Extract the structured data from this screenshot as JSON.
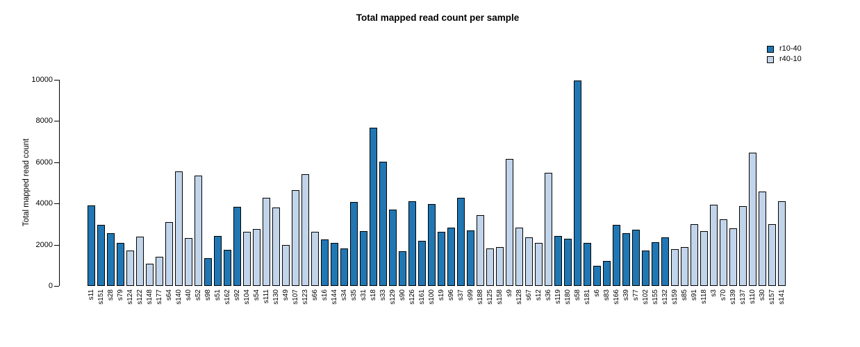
{
  "chart_data": {
    "type": "bar",
    "title": "Total mapped read count per sample",
    "xlabel": "",
    "ylabel": "Total mapped read count",
    "ylim": [
      0,
      10000
    ],
    "yticks": [
      0,
      2000,
      4000,
      6000,
      8000,
      10000
    ],
    "grid": false,
    "legend_position": "top-right",
    "bar_border_color": "#000000",
    "groups": [
      {
        "name": "r10-40",
        "color": "#2077b4"
      },
      {
        "name": "r40-10",
        "color": "#c1d4ea"
      }
    ],
    "bars": [
      {
        "label": "s11",
        "value": 3900,
        "group": "r10-40"
      },
      {
        "label": "s151",
        "value": 2960,
        "group": "r10-40"
      },
      {
        "label": "s28",
        "value": 2550,
        "group": "r10-40"
      },
      {
        "label": "s79",
        "value": 2080,
        "group": "r10-40"
      },
      {
        "label": "s124",
        "value": 1720,
        "group": "r40-10"
      },
      {
        "label": "s122",
        "value": 2380,
        "group": "r40-10"
      },
      {
        "label": "s148",
        "value": 1070,
        "group": "r40-10"
      },
      {
        "label": "s177",
        "value": 1410,
        "group": "r40-10"
      },
      {
        "label": "s64",
        "value": 3080,
        "group": "r40-10"
      },
      {
        "label": "s140",
        "value": 5560,
        "group": "r40-10"
      },
      {
        "label": "s40",
        "value": 2320,
        "group": "r40-10"
      },
      {
        "label": "s52",
        "value": 5330,
        "group": "r40-10"
      },
      {
        "label": "s98",
        "value": 1330,
        "group": "r10-40"
      },
      {
        "label": "s51",
        "value": 2410,
        "group": "r10-40"
      },
      {
        "label": "s162",
        "value": 1760,
        "group": "r10-40"
      },
      {
        "label": "s92",
        "value": 3830,
        "group": "r10-40"
      },
      {
        "label": "s104",
        "value": 2630,
        "group": "r40-10"
      },
      {
        "label": "s54",
        "value": 2770,
        "group": "r40-10"
      },
      {
        "label": "s111",
        "value": 4270,
        "group": "r40-10"
      },
      {
        "label": "s130",
        "value": 3800,
        "group": "r40-10"
      },
      {
        "label": "s49",
        "value": 2000,
        "group": "r40-10"
      },
      {
        "label": "s107",
        "value": 4650,
        "group": "r40-10"
      },
      {
        "label": "s123",
        "value": 5400,
        "group": "r40-10"
      },
      {
        "label": "s66",
        "value": 2610,
        "group": "r40-10"
      },
      {
        "label": "s16",
        "value": 2250,
        "group": "r10-40"
      },
      {
        "label": "s144",
        "value": 2090,
        "group": "r10-40"
      },
      {
        "label": "s34",
        "value": 1800,
        "group": "r10-40"
      },
      {
        "label": "s35",
        "value": 4060,
        "group": "r10-40"
      },
      {
        "label": "s31",
        "value": 2650,
        "group": "r10-40"
      },
      {
        "label": "s18",
        "value": 7650,
        "group": "r10-40"
      },
      {
        "label": "s33",
        "value": 6010,
        "group": "r10-40"
      },
      {
        "label": "s129",
        "value": 3700,
        "group": "r10-40"
      },
      {
        "label": "s90",
        "value": 1680,
        "group": "r10-40"
      },
      {
        "label": "s126",
        "value": 4100,
        "group": "r10-40"
      },
      {
        "label": "s161",
        "value": 2200,
        "group": "r10-40"
      },
      {
        "label": "s100",
        "value": 3960,
        "group": "r10-40"
      },
      {
        "label": "s19",
        "value": 2610,
        "group": "r10-40"
      },
      {
        "label": "s96",
        "value": 2820,
        "group": "r10-40"
      },
      {
        "label": "s37",
        "value": 4260,
        "group": "r10-40"
      },
      {
        "label": "s99",
        "value": 2700,
        "group": "r10-40"
      },
      {
        "label": "s188",
        "value": 3430,
        "group": "r40-10"
      },
      {
        "label": "s125",
        "value": 1800,
        "group": "r40-10"
      },
      {
        "label": "s158",
        "value": 1870,
        "group": "r40-10"
      },
      {
        "label": "s9",
        "value": 6150,
        "group": "r40-10"
      },
      {
        "label": "s128",
        "value": 2810,
        "group": "r40-10"
      },
      {
        "label": "s67",
        "value": 2340,
        "group": "r40-10"
      },
      {
        "label": "s12",
        "value": 2080,
        "group": "r40-10"
      },
      {
        "label": "s36",
        "value": 5470,
        "group": "r40-10"
      },
      {
        "label": "s119",
        "value": 2430,
        "group": "r10-40"
      },
      {
        "label": "s180",
        "value": 2300,
        "group": "r10-40"
      },
      {
        "label": "s58",
        "value": 9950,
        "group": "r10-40"
      },
      {
        "label": "s181",
        "value": 2090,
        "group": "r10-40"
      },
      {
        "label": "s6",
        "value": 960,
        "group": "r10-40"
      },
      {
        "label": "s83",
        "value": 1210,
        "group": "r10-40"
      },
      {
        "label": "s166",
        "value": 2950,
        "group": "r10-40"
      },
      {
        "label": "s39",
        "value": 2570,
        "group": "r10-40"
      },
      {
        "label": "s77",
        "value": 2730,
        "group": "r10-40"
      },
      {
        "label": "s102",
        "value": 1710,
        "group": "r10-40"
      },
      {
        "label": "s155",
        "value": 2110,
        "group": "r10-40"
      },
      {
        "label": "s132",
        "value": 2350,
        "group": "r10-40"
      },
      {
        "label": "s159",
        "value": 1780,
        "group": "r40-10"
      },
      {
        "label": "s85",
        "value": 1890,
        "group": "r40-10"
      },
      {
        "label": "s91",
        "value": 3000,
        "group": "r40-10"
      },
      {
        "label": "s118",
        "value": 2670,
        "group": "r40-10"
      },
      {
        "label": "s3",
        "value": 3930,
        "group": "r40-10"
      },
      {
        "label": "s70",
        "value": 3220,
        "group": "r40-10"
      },
      {
        "label": "s139",
        "value": 2780,
        "group": "r40-10"
      },
      {
        "label": "s137",
        "value": 3880,
        "group": "r40-10"
      },
      {
        "label": "s110",
        "value": 6460,
        "group": "r40-10"
      },
      {
        "label": "s30",
        "value": 4560,
        "group": "r40-10"
      },
      {
        "label": "s157",
        "value": 2990,
        "group": "r40-10"
      },
      {
        "label": "s141",
        "value": 4110,
        "group": "r40-10"
      }
    ]
  }
}
